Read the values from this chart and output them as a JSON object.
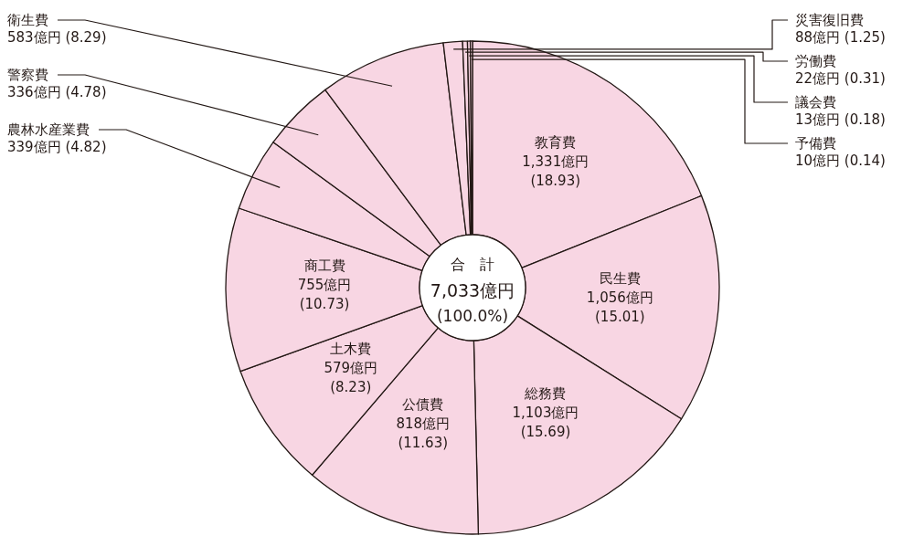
{
  "chart_data": {
    "type": "donut",
    "title": "合　計",
    "categories": [
      "教育費",
      "民生費",
      "総務費",
      "公債費",
      "土木費",
      "商工費",
      "農林水産業費",
      "警察費",
      "衛生費",
      "災害復旧費",
      "労働費",
      "議会費",
      "予備費"
    ],
    "values": [
      1331,
      1056,
      1103,
      818,
      579,
      755,
      339,
      336,
      583,
      88,
      22,
      13,
      10
    ],
    "colors": [
      "#f8d6e3",
      "#f8d6e3",
      "#f8d6e3",
      "#f8d6e3",
      "#f8d6e3",
      "#f8d6e3",
      "#f8d6e3",
      "#f8d6e3",
      "#f8d6e3",
      "#f8d6e3",
      "#f8d6e3",
      "#f8d6e3",
      "#f8d6e3"
    ],
    "value_labels": [
      "1,331億円 (18.93)",
      "1,056億円 (15.01)",
      "1,103億円 (15.69)",
      "818億円 (11.63)",
      "579億円 (8.23)",
      "755億円 (10.73)",
      "339億円 (4.82)",
      "336億円 (4.78)",
      "583億円 (8.29)",
      "88億円 (1.25)",
      "22億円 (0.31)",
      "13億円 (0.18)",
      "10億円 (0.14)"
    ],
    "annotations": [
      "7,033億円",
      "(100.0%)"
    ]
  }
}
